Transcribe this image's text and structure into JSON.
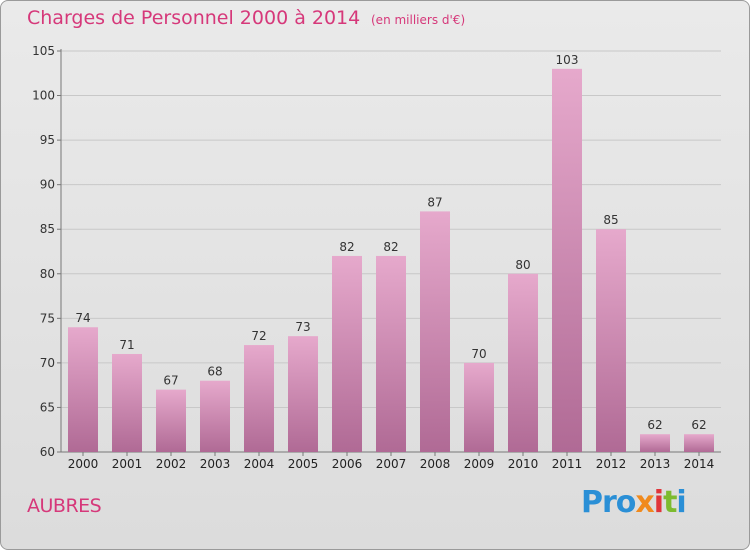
{
  "header": {
    "title": "Charges de Personnel 2000 à 2014",
    "subtitle": "(en milliers d'€)"
  },
  "footer": {
    "town": "AUBRES",
    "logo": [
      "Pro",
      "x",
      "i",
      "t",
      "i"
    ]
  },
  "colors": {
    "accent": "#d6387a",
    "bar_top": "#e6a9cc",
    "bar_bottom": "#b06a95",
    "grid": "#c8c8c8"
  },
  "chart_data": {
    "type": "bar",
    "title": "Charges de Personnel 2000 à 2014",
    "subtitle": "(en milliers d'€)",
    "categories": [
      "2000",
      "2001",
      "2002",
      "2003",
      "2004",
      "2005",
      "2006",
      "2007",
      "2008",
      "2009",
      "2010",
      "2011",
      "2012",
      "2013",
      "2014"
    ],
    "values": [
      74,
      71,
      67,
      68,
      72,
      73,
      82,
      82,
      87,
      70,
      80,
      103,
      85,
      62,
      62
    ],
    "ylim": [
      60,
      105
    ],
    "yticks": [
      60,
      65,
      70,
      75,
      80,
      85,
      90,
      95,
      100,
      105
    ],
    "grid": true
  }
}
